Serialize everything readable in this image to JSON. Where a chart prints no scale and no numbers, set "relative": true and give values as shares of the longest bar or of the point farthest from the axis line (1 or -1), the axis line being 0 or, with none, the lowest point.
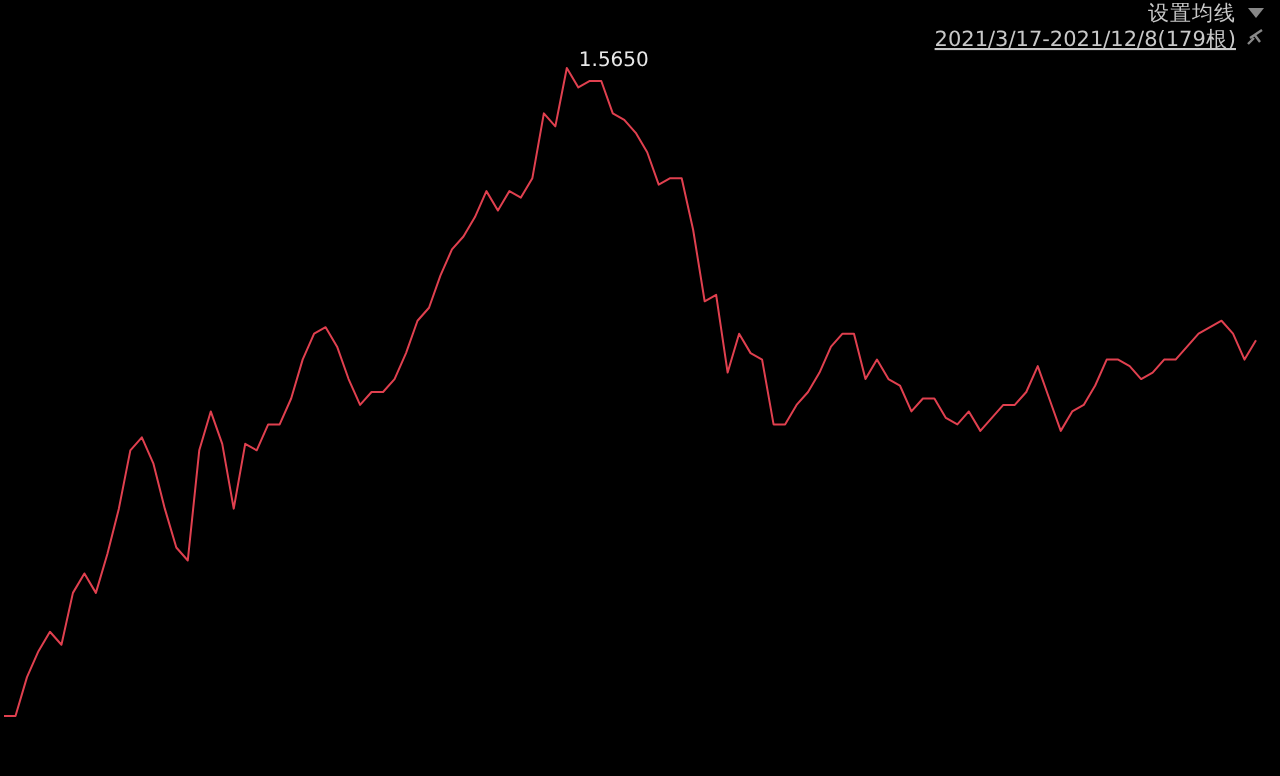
{
  "chart_data": {
    "type": "line",
    "relative": true,
    "color": "#e0404f",
    "annotations": [
      "设置均线",
      "2021/3/17-2021/12/8(179根)",
      "1.5650"
    ],
    "categories": [
      null,
      null,
      null,
      null,
      null,
      null,
      null,
      null,
      null,
      null,
      null,
      null,
      null,
      null,
      null,
      null,
      null,
      null,
      null,
      null,
      null,
      null,
      null,
      null,
      null,
      null,
      null,
      null,
      null,
      null,
      null,
      null,
      null,
      null,
      null,
      null,
      null,
      null,
      null,
      null,
      null,
      null,
      null,
      null,
      null,
      null,
      null,
      null,
      null,
      null,
      null,
      null,
      null,
      null,
      null,
      null,
      null,
      null,
      null,
      null,
      null,
      null,
      null,
      null,
      null,
      null,
      null,
      null,
      null,
      null,
      null,
      null,
      null,
      null,
      null,
      null,
      null,
      null,
      null,
      null,
      null,
      null,
      null,
      null,
      null,
      null,
      null,
      null,
      null,
      null,
      null,
      null,
      null,
      null,
      null,
      null,
      null,
      null,
      null,
      null,
      null,
      null,
      null,
      null,
      null,
      null,
      null,
      null,
      null,
      null
    ],
    "values": [
      0,
      0.0,
      0.06,
      0.1,
      0.13,
      0.11,
      0.19,
      0.22,
      0.19,
      0.25,
      0.32,
      0.41,
      0.43,
      0.39,
      0.32,
      0.26,
      0.24,
      0.41,
      0.47,
      0.42,
      0.32,
      0.42,
      0.41,
      0.45,
      0.45,
      0.49,
      0.55,
      0.59,
      0.6,
      0.57,
      0.52,
      0.48,
      0.5,
      0.5,
      0.52,
      0.56,
      0.61,
      0.63,
      0.68,
      0.72,
      0.74,
      0.77,
      0.81,
      0.78,
      0.81,
      0.8,
      0.83,
      0.93,
      0.91,
      1,
      0.97,
      0.98,
      0.98,
      0.93,
      0.92,
      0.9,
      0.87,
      0.82,
      0.83,
      0.83,
      0.75,
      0.64,
      0.65,
      0.53,
      0.59,
      0.56,
      0.55,
      0.45,
      0.45,
      0.48,
      0.5,
      0.53,
      0.57,
      0.59,
      0.59,
      0.52,
      0.55,
      0.52,
      0.51,
      0.47,
      0.49,
      0.49,
      0.46,
      0.45,
      0.47,
      0.44,
      0.46,
      0.48,
      0.48,
      0.5,
      0.54,
      0.49,
      0.44,
      0.47,
      0.48,
      0.51,
      0.55,
      0.55,
      0.54,
      0.52,
      0.53,
      0.55,
      0.55,
      0.57,
      0.59,
      0.6,
      0.61,
      0.59,
      0.55,
      0.58
    ]
  }
}
